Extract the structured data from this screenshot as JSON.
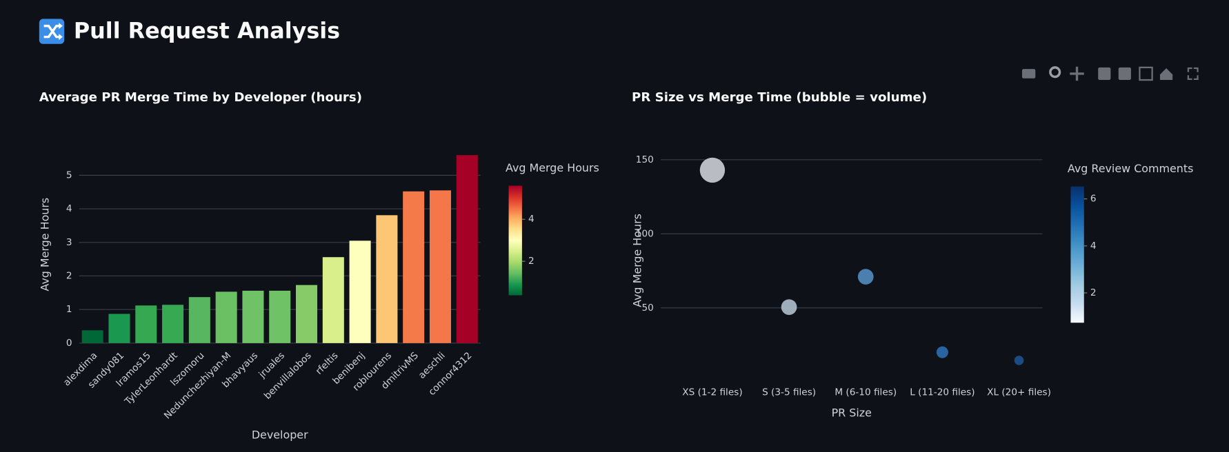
{
  "header": {
    "title": "Pull Request Analysis"
  },
  "chart_data": [
    {
      "type": "bar",
      "title": "Average PR Merge Time by Developer (hours)",
      "x_label": "Developer",
      "y_label": "Avg Merge Hours",
      "categories": [
        "alexdima",
        "sandy081",
        "lramos15",
        "TylerLeonhardt",
        "lszomoru",
        "Nedunchezhiyan-M",
        "bhavyaus",
        "jruales",
        "benvillalobos",
        "rfeltis",
        "benibenj",
        "roblourens",
        "dmitrivMS",
        "aeschli",
        "connor4312"
      ],
      "values": [
        0.38,
        0.87,
        1.12,
        1.14,
        1.37,
        1.53,
        1.56,
        1.56,
        1.73,
        2.56,
        3.05,
        3.81,
        4.52,
        4.55,
        5.6
      ],
      "colors": [
        "#006837",
        "#1a9850",
        "#36a852",
        "#37a953",
        "#57b65f",
        "#6cc064",
        "#70c266",
        "#70c266",
        "#86cb67",
        "#d9ef8b",
        "#fefebd",
        "#fdc675",
        "#f57a49",
        "#f47649",
        "#a50026"
      ],
      "ylim": [
        0,
        5.88
      ],
      "yticks": [
        0,
        1,
        2,
        3,
        4,
        5
      ],
      "grid": true,
      "colorbar": {
        "title": "Avg Merge Hours",
        "range": [
          0.38,
          5.6
        ],
        "ticks": [
          2,
          4
        ],
        "colorscale": [
          "#006837",
          "#1a9850",
          "#66bd63",
          "#a6d96a",
          "#d9ef8b",
          "#ffffbf",
          "#fee08b",
          "#fdae61",
          "#f46d43",
          "#d73027",
          "#a50026"
        ]
      }
    },
    {
      "type": "scatter",
      "title": "PR Size vs Merge Time (bubble = volume)",
      "x_label": "PR Size",
      "y_label": "Avg Merge Hours",
      "categories": [
        "XS (1-2 files)",
        "S (3-5 files)",
        "M (6-10 files)",
        "L (11-20 files)",
        "XL (20+ files)"
      ],
      "values": [
        143,
        50.5,
        71,
        20,
        14.5
      ],
      "sizes": [
        256,
        100,
        100,
        56,
        36
      ],
      "colors": [
        "#c3c7cc",
        "#a9b6c3",
        "#4f86b8",
        "#2a6aa8",
        "#1b4f8a"
      ],
      "ylim": [
        4,
        160
      ],
      "yticks": [
        50,
        100,
        150
      ],
      "grid": true,
      "colorbar": {
        "title": "Avg Review Comments",
        "range": [
          0.73,
          6.53
        ],
        "ticks": [
          2,
          4,
          6
        ],
        "colorscale": [
          "#f7fbff",
          "#c6dbef",
          "#9ecae1",
          "#6baed6",
          "#4292c6",
          "#2171b5",
          "#08519c",
          "#08306b"
        ]
      }
    }
  ]
}
